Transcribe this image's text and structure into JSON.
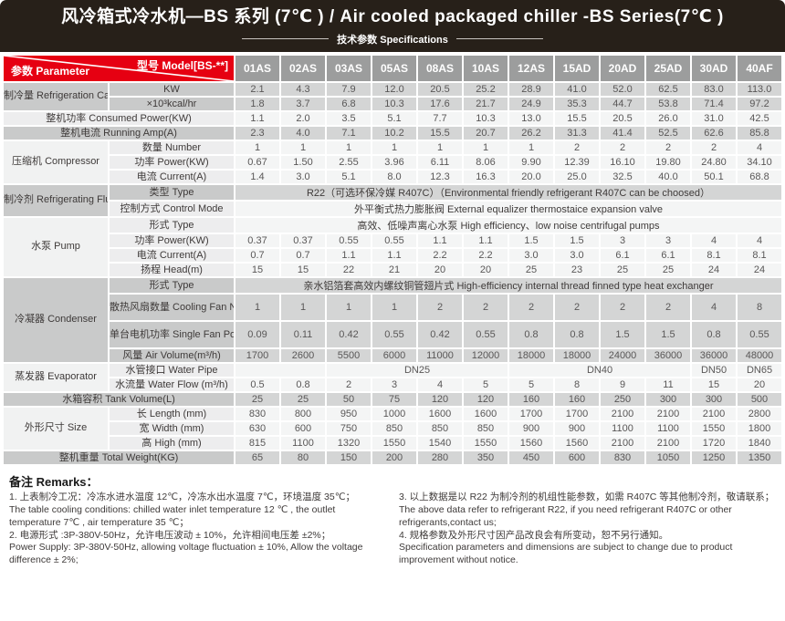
{
  "colors": {
    "banner_bg": "#272019",
    "brand_red": "#e60012",
    "model_header_gray": "#9c9d9d",
    "row_gray": "#d4d5d5",
    "label_gray": "#c9caca",
    "row_white": "#f4f5f5",
    "label_white": "#ededee",
    "value_text": "#595757",
    "label_text": "#3e3a39"
  },
  "header": {
    "title": "风冷箱式冷水机—BS 系列 (7℃ ) / Air cooled packaged chiller -BS Series(7℃ )",
    "subtitle": "技术参数 Specifications"
  },
  "table": {
    "corner": {
      "param_label": "参数 Parameter",
      "model_label": "型号 Model[BS-**]"
    },
    "models": [
      "01AS",
      "02AS",
      "03AS",
      "05AS",
      "08AS",
      "10AS",
      "12AS",
      "15AD",
      "20AD",
      "25AD",
      "30AD",
      "40AF"
    ],
    "rows": [
      {
        "group": "制冷量\nRefrigeration Capacity",
        "group_rows": 2,
        "label": "KW",
        "shade": "gray",
        "values": [
          "2.1",
          "4.3",
          "7.9",
          "12.0",
          "20.5",
          "25.2",
          "28.9",
          "41.0",
          "52.0",
          "62.5",
          "83.0",
          "113.0"
        ]
      },
      {
        "label": "×10³kcal/hr",
        "shade": "gray",
        "values": [
          "1.8",
          "3.7",
          "6.8",
          "10.3",
          "17.6",
          "21.7",
          "24.9",
          "35.3",
          "44.7",
          "53.8",
          "71.4",
          "97.2"
        ]
      },
      {
        "label": "整机功率 Consumed Power(KW)",
        "label_span": 2,
        "shade": "white",
        "values": [
          "1.1",
          "2.0",
          "3.5",
          "5.1",
          "7.7",
          "10.3",
          "13.0",
          "15.5",
          "20.5",
          "26.0",
          "31.0",
          "42.5"
        ]
      },
      {
        "label": "整机电流 Running Amp(A)",
        "label_span": 2,
        "shade": "gray",
        "values": [
          "2.3",
          "4.0",
          "7.1",
          "10.2",
          "15.5",
          "20.7",
          "26.2",
          "31.3",
          "41.4",
          "52.5",
          "62.6",
          "85.8"
        ]
      },
      {
        "group": "压缩机\nCompressor",
        "group_rows": 3,
        "label": "数量 Number",
        "shade": "white",
        "values": [
          "1",
          "1",
          "1",
          "1",
          "1",
          "1",
          "1",
          "2",
          "2",
          "2",
          "2",
          "4"
        ]
      },
      {
        "label": "功率 Power(KW)",
        "shade": "white",
        "values": [
          "0.67",
          "1.50",
          "2.55",
          "3.96",
          "6.11",
          "8.06",
          "9.90",
          "12.39",
          "16.10",
          "19.80",
          "24.80",
          "34.10"
        ]
      },
      {
        "label": "电流 Current(A)",
        "shade": "white",
        "values": [
          "1.4",
          "3.0",
          "5.1",
          "8.0",
          "12.3",
          "16.3",
          "20.0",
          "25.0",
          "32.5",
          "40.0",
          "50.1",
          "68.8"
        ]
      },
      {
        "group": "制冷剂\nRefrigerating Fluid",
        "group_rows": 2,
        "label": "类型 Type",
        "shade": "gray",
        "wide": "R22（可选环保冷媒 R407C）（Environmental friendly refrigerant R407C can be choosed）"
      },
      {
        "label": "控制方式 Control Mode",
        "shade": "white",
        "wide": "外平衡式热力膨胀阀 External equalizer thermostaice expansion valve"
      },
      {
        "group": "水泵\nPump",
        "group_rows": 4,
        "label": "形式 Type",
        "shade": "white",
        "wide": "高效、低噪声离心水泵 High efficiency、low noise centrifugal pumps"
      },
      {
        "label": "功率 Power(KW)",
        "shade": "white",
        "values": [
          "0.37",
          "0.37",
          "0.55",
          "0.55",
          "1.1",
          "1.1",
          "1.5",
          "1.5",
          "3",
          "3",
          "4",
          "4"
        ]
      },
      {
        "label": "电流 Current(A)",
        "shade": "white",
        "values": [
          "0.7",
          "0.7",
          "1.1",
          "1.1",
          "2.2",
          "2.2",
          "3.0",
          "3.0",
          "6.1",
          "6.1",
          "8.1",
          "8.1"
        ]
      },
      {
        "label": "扬程 Head(m)",
        "shade": "white",
        "values": [
          "15",
          "15",
          "22",
          "21",
          "20",
          "20",
          "25",
          "23",
          "25",
          "25",
          "24",
          "24"
        ]
      },
      {
        "group": "冷凝器\nCondenser",
        "group_rows": 4,
        "label": "形式 Type",
        "shade": "gray",
        "wide": "亲水铝箔套高效内螺纹铜管翅片式 High-efficiency internal thread finned type heat exchanger"
      },
      {
        "label": "散热风扇数量\nCooling Fan Number",
        "shade": "gray",
        "tall": true,
        "values": [
          "1",
          "1",
          "1",
          "1",
          "2",
          "2",
          "2",
          "2",
          "2",
          "2",
          "4",
          "8"
        ]
      },
      {
        "label": "单台电机功率\nSingle Fan Power(KW)",
        "shade": "gray",
        "tall": true,
        "values": [
          "0.09",
          "0.11",
          "0.42",
          "0.55",
          "0.42",
          "0.55",
          "0.8",
          "0.8",
          "1.5",
          "1.5",
          "0.8",
          "0.55"
        ]
      },
      {
        "label": "风量 Air Volume(m³/h)",
        "shade": "gray",
        "values": [
          "1700",
          "2600",
          "5500",
          "6000",
          "11000",
          "12000",
          "18000",
          "18000",
          "24000",
          "36000",
          "36000",
          "48000"
        ]
      },
      {
        "group": "蒸发器\nEvaporator",
        "group_rows": 2,
        "label": "水管接口 Water Pipe",
        "shade": "white",
        "spans": [
          {
            "text": "",
            "cols": 2
          },
          {
            "text": "DN25",
            "cols": 4
          },
          {
            "text": "DN40",
            "cols": 4
          },
          {
            "text": "DN50",
            "cols": 1
          },
          {
            "text": "DN65",
            "cols": 1
          }
        ]
      },
      {
        "label": "水流量 Water Flow (m³/h)",
        "shade": "white",
        "values": [
          "0.5",
          "0.8",
          "2",
          "3",
          "4",
          "5",
          "5",
          "8",
          "9",
          "11",
          "15",
          "20"
        ]
      },
      {
        "label": "水箱容积 Tank Volume(L)",
        "label_span": 2,
        "shade": "gray",
        "values": [
          "25",
          "25",
          "50",
          "75",
          "120",
          "120",
          "160",
          "160",
          "250",
          "300",
          "300",
          "500"
        ]
      },
      {
        "group": "外形尺寸\nSize",
        "group_rows": 3,
        "label": "长 Length (mm)",
        "shade": "white",
        "values": [
          "830",
          "800",
          "950",
          "1000",
          "1600",
          "1600",
          "1700",
          "1700",
          "2100",
          "2100",
          "2100",
          "2800"
        ]
      },
      {
        "label": "宽 Width (mm)",
        "shade": "white",
        "values": [
          "630",
          "600",
          "750",
          "850",
          "850",
          "850",
          "900",
          "900",
          "1100",
          "1100",
          "1550",
          "1800"
        ]
      },
      {
        "label": "高 High (mm)",
        "shade": "white",
        "values": [
          "815",
          "1100",
          "1320",
          "1550",
          "1540",
          "1550",
          "1560",
          "1560",
          "2100",
          "2100",
          "1720",
          "1840"
        ]
      },
      {
        "label": "整机重量 Total Weight(KG)",
        "label_span": 2,
        "shade": "gray",
        "values": [
          "65",
          "80",
          "150",
          "200",
          "280",
          "350",
          "450",
          "600",
          "830",
          "1050",
          "1250",
          "1350"
        ]
      }
    ]
  },
  "remarks": {
    "heading": "备注 Remarks：",
    "left": [
      "1. 上表制冷工况：冷冻水进水温度 12℃，冷冻水出水温度 7℃，环境温度 35℃；",
      "The table cooling conditions: chilled water inlet temperature 12 ℃ , the outlet temperature 7℃ , air temperature 35 ℃；",
      "2. 电源形式 :3P-380V-50Hz，允许电压波动 ± 10%，允许相间电压差 ±2%；",
      "Power Supply: 3P-380V-50Hz, allowing voltage fluctuation ± 10%, Allow the voltage difference ± 2%;"
    ],
    "right": [
      "3. 以上数据是以 R22 为制冷剂的机组性能参数，如需 R407C 等其他制冷剂，敬请联系；",
      "The above data refer to refrigerant R22, if you need refrigerant R407C or other refrigerants,contact us;",
      "4. 规格参数及外形尺寸因产品改良会有所变动，恕不另行通知。",
      "Specification parameters and dimensions are subject to change due to product improvement without notice."
    ]
  }
}
